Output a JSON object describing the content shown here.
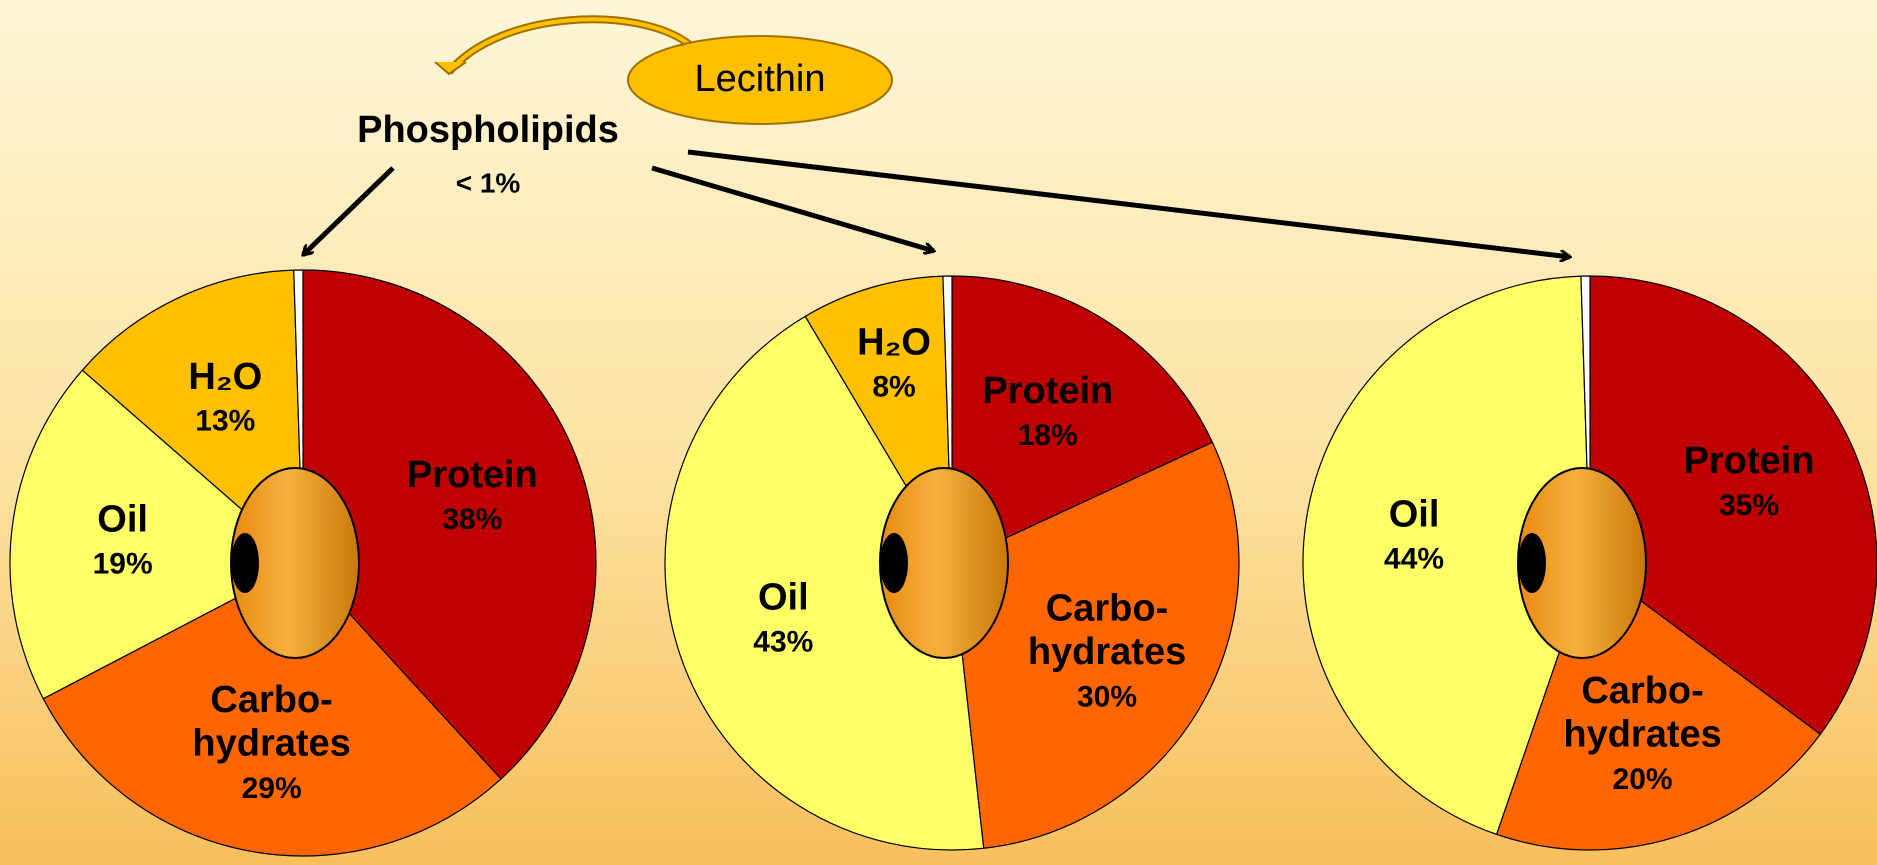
{
  "chart_data": [
    {
      "type": "pie",
      "categories": [
        "Protein",
        "Carbo-\nhydrates",
        "Oil",
        "H₂O",
        null
      ],
      "values": [
        38,
        29,
        19,
        13,
        0.5
      ],
      "value_labels": [
        "38%",
        "29%",
        "19%",
        "13%",
        null
      ],
      "colors": [
        "#c00000",
        "#ff6600",
        "#ffff66",
        "#ffc000",
        "#ffffff"
      ]
    },
    {
      "type": "pie",
      "categories": [
        "Protein",
        "Carbo-\nhydrates",
        "Oil",
        "H₂O",
        null
      ],
      "values": [
        18,
        30,
        43,
        8,
        0.5
      ],
      "value_labels": [
        "18%",
        "30%",
        "43%",
        "8%",
        null
      ],
      "colors": [
        "#c00000",
        "#ff6600",
        "#ffff66",
        "#ffc000",
        "#ffffff"
      ]
    },
    {
      "type": "pie",
      "categories": [
        "Protein",
        "Carbo-\nhydrates",
        "Oil",
        null
      ],
      "values": [
        35,
        20,
        44,
        0.5
      ],
      "value_labels": [
        "35%",
        "20%",
        "44%",
        null
      ],
      "colors": [
        "#c00000",
        "#ff6600",
        "#ffff66",
        "#ffffff"
      ]
    }
  ],
  "annotations": {
    "source": "Phospholipids",
    "source_value": "< 1%",
    "origin": "Lecithin"
  }
}
